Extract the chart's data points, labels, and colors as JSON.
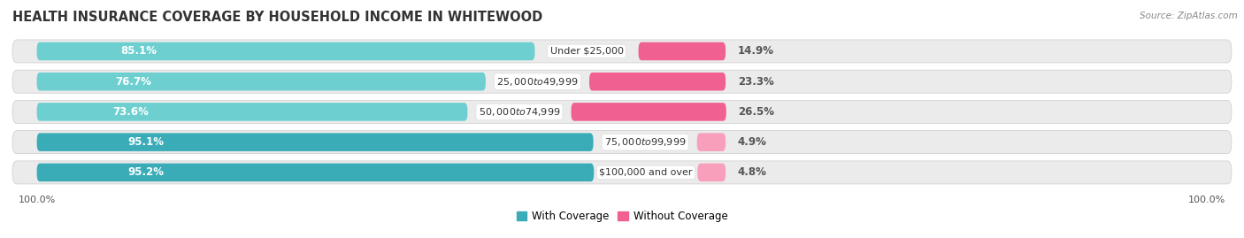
{
  "title": "HEALTH INSURANCE COVERAGE BY HOUSEHOLD INCOME IN WHITEWOOD",
  "source": "Source: ZipAtlas.com",
  "categories": [
    "Under $25,000",
    "$25,000 to $49,999",
    "$50,000 to $74,999",
    "$75,000 to $99,999",
    "$100,000 and over"
  ],
  "with_coverage": [
    85.1,
    76.7,
    73.6,
    95.1,
    95.2
  ],
  "without_coverage": [
    14.9,
    23.3,
    26.5,
    4.9,
    4.8
  ],
  "color_with_light": "#6DCFCF",
  "color_with_dark": "#3AACB8",
  "color_without_dark": "#F06090",
  "color_without_light": "#F8A0BB",
  "row_bg": "#EBEBEB",
  "title_fontsize": 10.5,
  "source_fontsize": 7.5,
  "bar_label_fontsize": 8.5,
  "cat_label_fontsize": 8,
  "legend_fontsize": 8.5,
  "tick_fontsize": 8
}
